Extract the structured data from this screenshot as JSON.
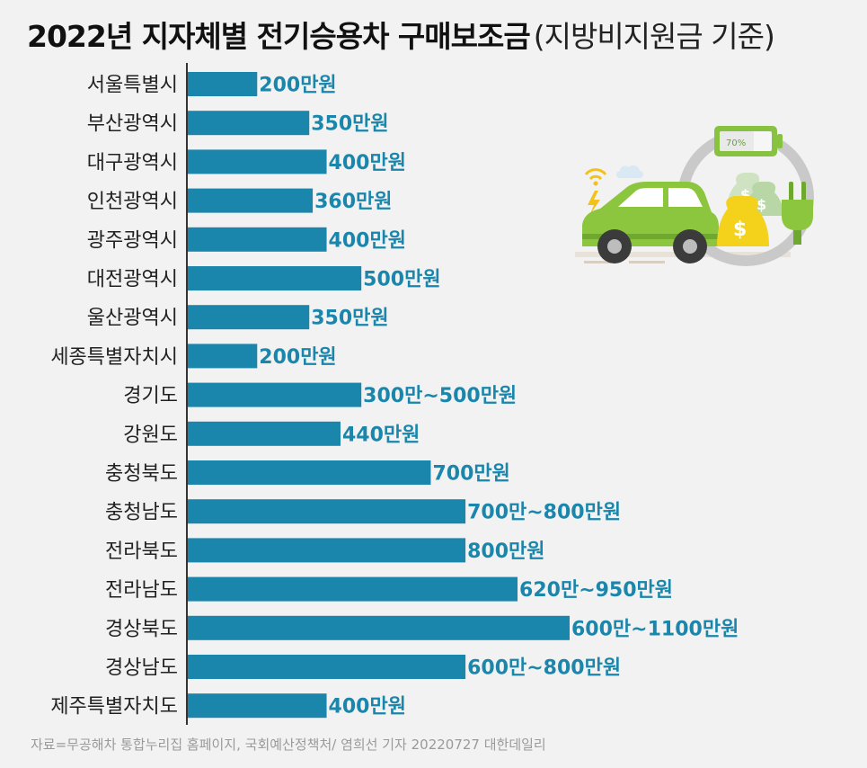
{
  "title": "2022년 지자체별 전기승용차 구매보조금",
  "subtitle": "(지방비지원금 기준)",
  "source": "자료=무공해차 통합누리집 홈페이지, 국회예산정책처/ 염희선 기자 20220727 대한데일리",
  "colors": {
    "bar": "#1a86ac",
    "value_label": "#1a86ac",
    "category_label": "#222222",
    "axis": "#333333"
  },
  "illustration": {
    "icon": "electric-car-subsidy-illustration",
    "battery_text": "70%",
    "coin_symbol": "$"
  },
  "chart_data": {
    "type": "bar",
    "orientation": "horizontal",
    "title": "2022년 지자체별 전기승용차 구매보조금",
    "subtitle": "(지방비지원금 기준)",
    "xlabel": "",
    "ylabel": "",
    "unit": "만원",
    "xlim": [
      0,
      1100
    ],
    "grid": false,
    "legend": "none",
    "categories": [
      "서울특별시",
      "부산광역시",
      "대구광역시",
      "인천광역시",
      "광주광역시",
      "대전광역시",
      "울산광역시",
      "세종특별자치시",
      "경기도",
      "강원도",
      "충청북도",
      "충청남도",
      "전라북도",
      "전라남도",
      "경상북도",
      "경상남도",
      "제주특별자치도"
    ],
    "values": [
      200,
      350,
      400,
      360,
      400,
      500,
      350,
      200,
      500,
      440,
      700,
      800,
      800,
      950,
      1100,
      800,
      400
    ],
    "labels": [
      "200만원",
      "350만원",
      "400만원",
      "360만원",
      "400만원",
      "500만원",
      "350만원",
      "200만원",
      "300만~500만원",
      "440만원",
      "700만원",
      "700만~800만원",
      "800만원",
      "620만~950만원",
      "600만~1100만원",
      "600만~800만원",
      "400만원"
    ]
  }
}
